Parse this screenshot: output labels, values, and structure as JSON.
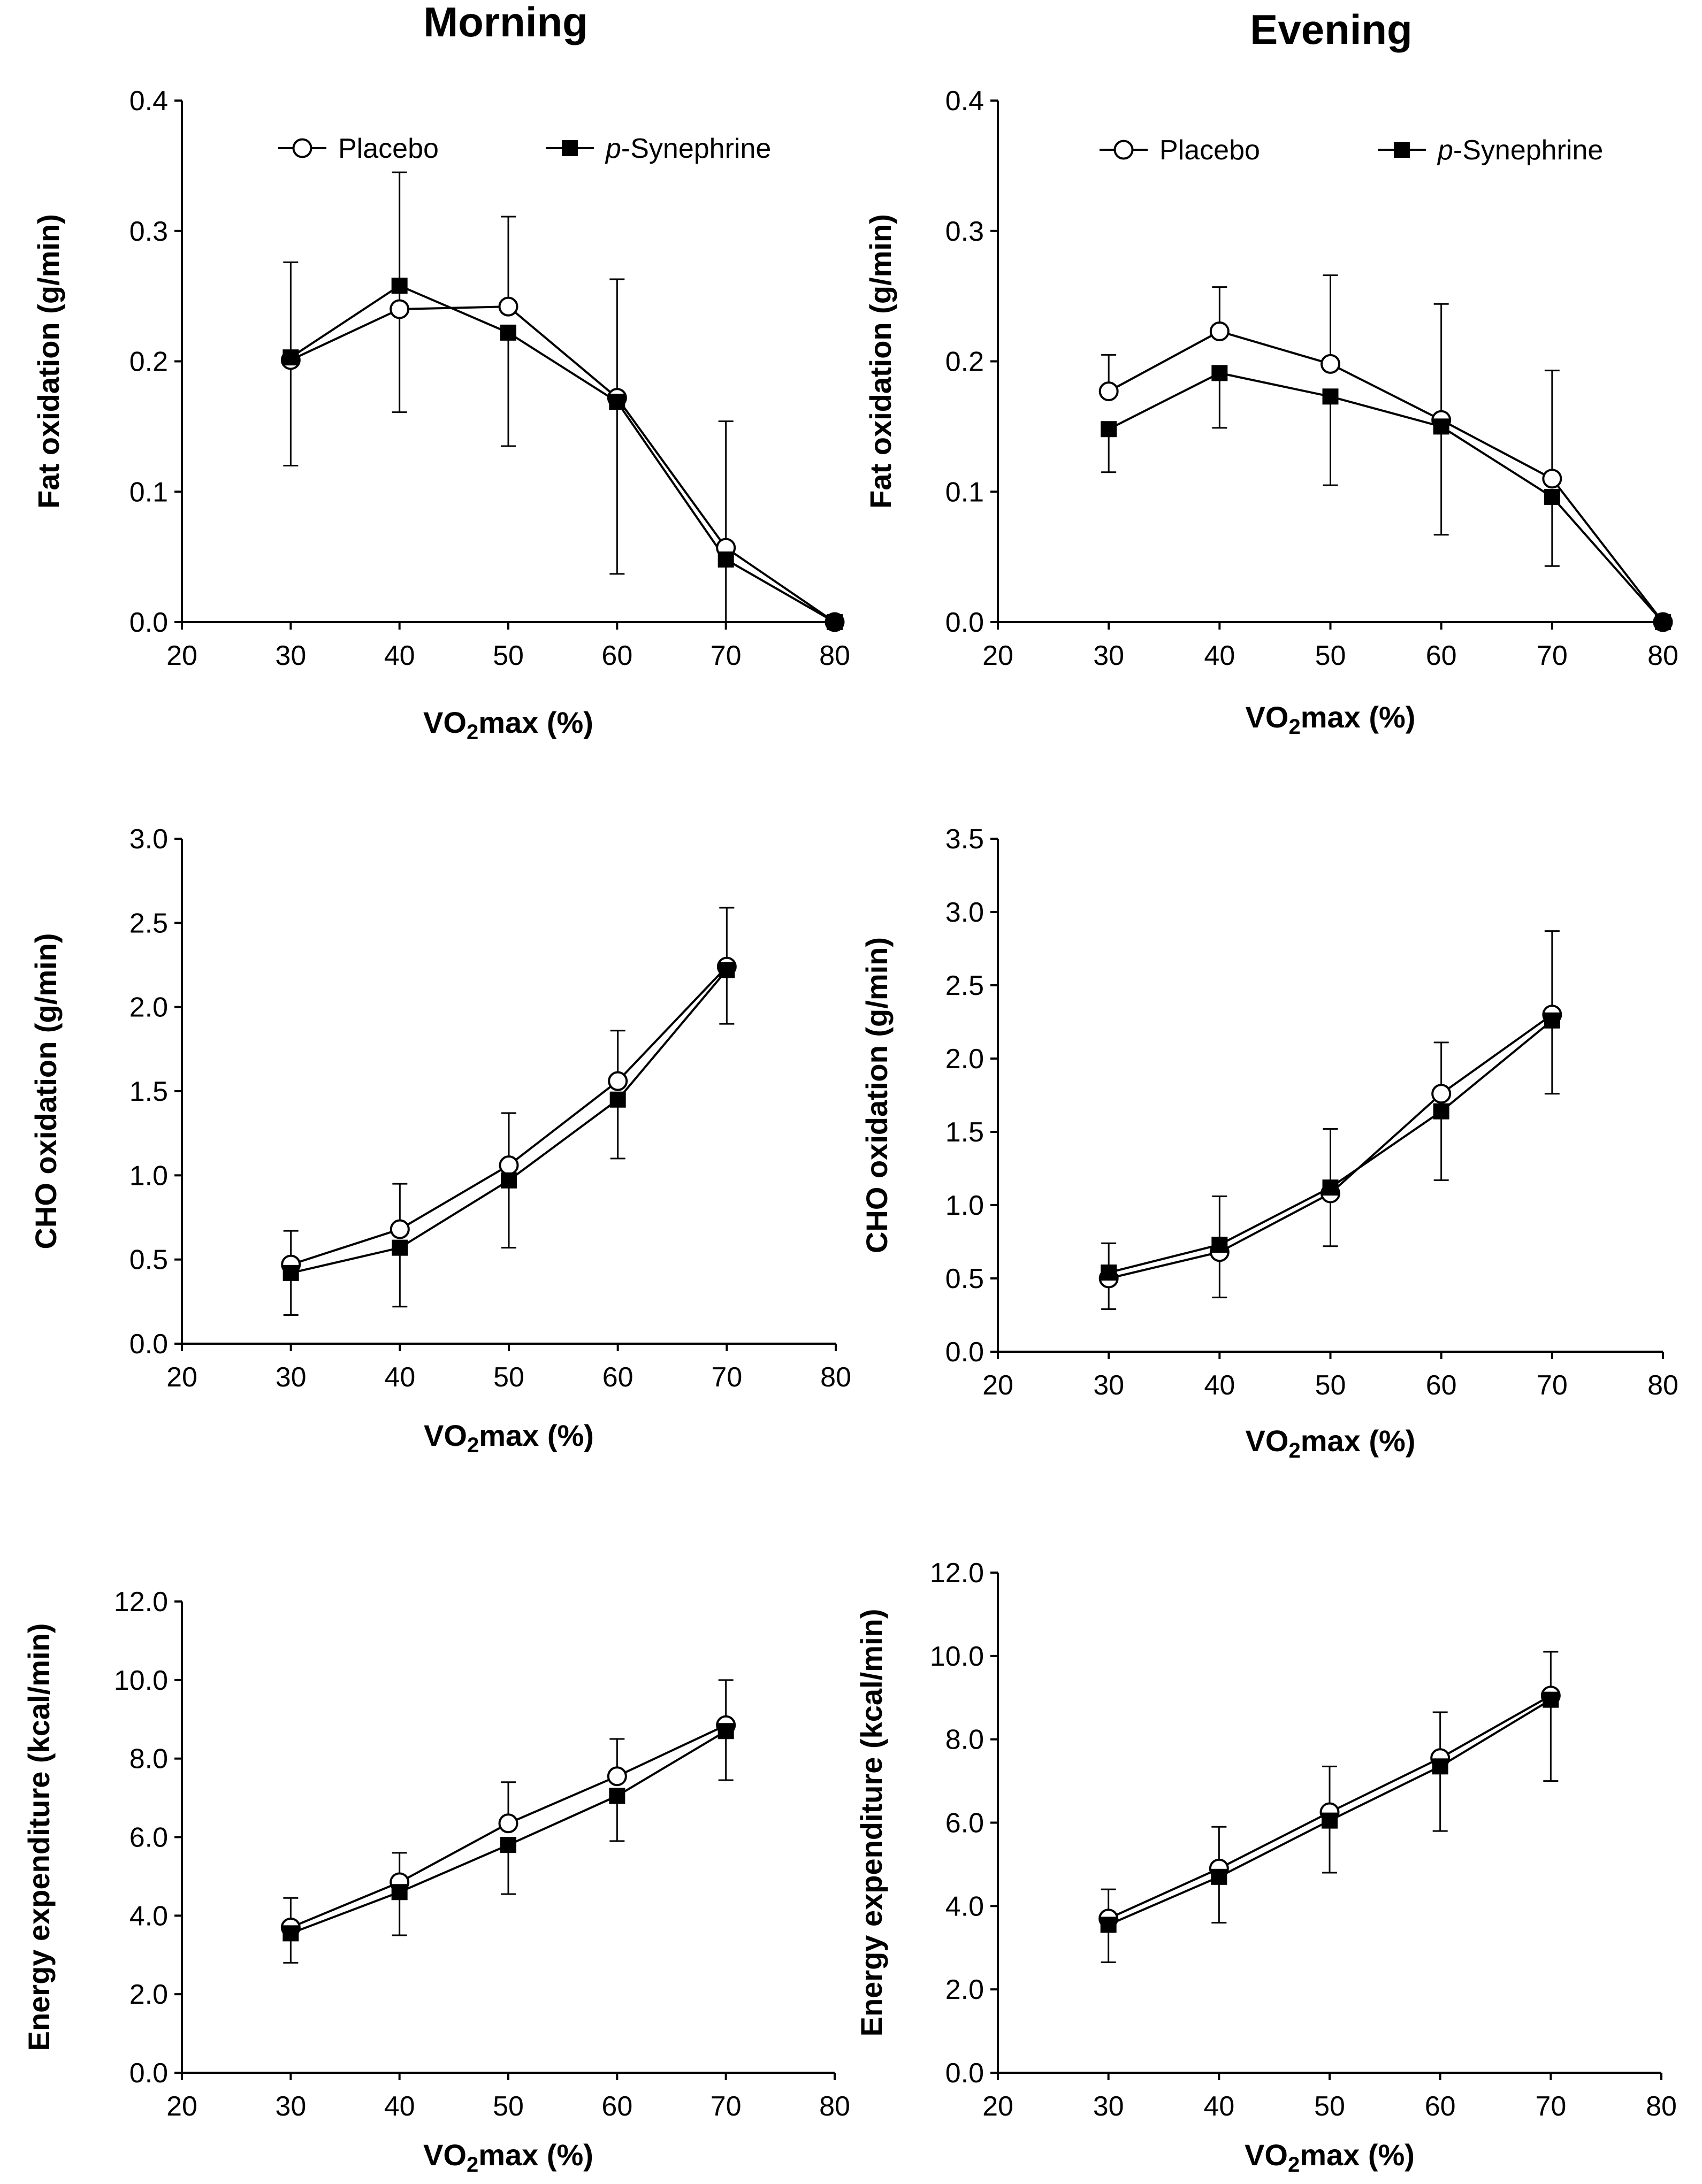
{
  "figure": {
    "column_titles": [
      "Morning",
      "Evening"
    ]
  },
  "chart_data": [
    {
      "type": "line",
      "panel": "Morning fat oxidation",
      "xlabel": "VO",
      "xlabel_sub": "2",
      "xlabel_rest": "max (%)",
      "ylabel": "Fat oxidation (g/min)",
      "xlim": [
        20,
        80
      ],
      "ylim": [
        0,
        0.4
      ],
      "x_ticks": [
        20,
        30,
        40,
        50,
        60,
        70,
        80
      ],
      "y_ticks": [
        "0.0",
        "0.1",
        "0.2",
        "0.3",
        "0.4"
      ],
      "legend": {
        "position": "top",
        "entries": [
          {
            "marker": "open-circle",
            "label": "Placebo"
          },
          {
            "marker": "filled-square",
            "label_italic": "p",
            "label": "-Synephrine"
          }
        ]
      },
      "series": [
        {
          "name": "Placebo",
          "marker": "open-circle",
          "x": [
            30,
            40,
            50,
            60,
            70,
            80
          ],
          "y": [
            0.201,
            0.24,
            0.242,
            0.172,
            0.057,
            0.0
          ],
          "err_up": [
            0.075,
            0,
            0.069,
            0,
            0.097,
            0
          ],
          "err_down": [
            0,
            0,
            0,
            0,
            0,
            0
          ]
        },
        {
          "name": "p-Synephrine",
          "marker": "filled-square",
          "x": [
            30,
            40,
            50,
            60,
            70,
            80
          ],
          "y": [
            0.203,
            0.258,
            0.222,
            0.169,
            0.048,
            0.0
          ],
          "err_up": [
            0,
            0.087,
            0,
            0.094,
            0,
            0
          ],
          "err_down": [
            0.083,
            0.097,
            0.087,
            0.132,
            0.048,
            0
          ]
        }
      ]
    },
    {
      "type": "line",
      "panel": "Evening fat oxidation",
      "xlabel": "VO",
      "xlabel_sub": "2",
      "xlabel_rest": "max (%)",
      "ylabel": "Fat oxidation (g/min)",
      "xlim": [
        20,
        80
      ],
      "ylim": [
        0,
        0.4
      ],
      "x_ticks": [
        20,
        30,
        40,
        50,
        60,
        70,
        80
      ],
      "y_ticks": [
        "0.0",
        "0.1",
        "0.2",
        "0.3",
        "0.4"
      ],
      "legend": {
        "position": "top",
        "entries": [
          {
            "marker": "open-circle",
            "label": "Placebo"
          },
          {
            "marker": "filled-square",
            "label_italic": "p",
            "label": "-Synephrine"
          }
        ]
      },
      "series": [
        {
          "name": "Placebo",
          "marker": "open-circle",
          "x": [
            30,
            40,
            50,
            60,
            70,
            80
          ],
          "y": [
            0.177,
            0.223,
            0.198,
            0.155,
            0.11,
            0.0
          ],
          "err_up": [
            0.028,
            0.034,
            0.068,
            0.089,
            0.083,
            0
          ],
          "err_down": [
            0,
            0,
            0,
            0,
            0,
            0
          ]
        },
        {
          "name": "p-Synephrine",
          "marker": "filled-square",
          "x": [
            30,
            40,
            50,
            60,
            70,
            80
          ],
          "y": [
            0.148,
            0.191,
            0.173,
            0.15,
            0.096,
            0.0
          ],
          "err_up": [
            0,
            0,
            0,
            0,
            0,
            0
          ],
          "err_down": [
            0.033,
            0.042,
            0.068,
            0.083,
            0.053,
            0
          ]
        }
      ]
    },
    {
      "type": "line",
      "panel": "Morning CHO oxidation",
      "xlabel": "VO",
      "xlabel_sub": "2",
      "xlabel_rest": "max (%)",
      "ylabel": "CHO oxidation (g/min)",
      "xlim": [
        20,
        80
      ],
      "ylim": [
        0,
        3.0
      ],
      "x_ticks": [
        20,
        30,
        40,
        50,
        60,
        70,
        80
      ],
      "y_ticks": [
        "0.0",
        "0.5",
        "1.0",
        "1.5",
        "2.0",
        "2.5",
        "3.0"
      ],
      "series": [
        {
          "name": "Placebo",
          "marker": "open-circle",
          "x": [
            30,
            40,
            50,
            60,
            70
          ],
          "y": [
            0.47,
            0.68,
            1.06,
            1.56,
            2.24
          ],
          "err_up": [
            0.2,
            0.27,
            0.31,
            0.3,
            0.35
          ],
          "err_down": [
            0,
            0,
            0,
            0,
            0
          ]
        },
        {
          "name": "p-Synephrine",
          "marker": "filled-square",
          "x": [
            30,
            40,
            50,
            60,
            70
          ],
          "y": [
            0.42,
            0.57,
            0.97,
            1.45,
            2.22
          ],
          "err_up": [
            0,
            0,
            0,
            0,
            0
          ],
          "err_down": [
            0.25,
            0.35,
            0.4,
            0.35,
            0.32
          ]
        }
      ]
    },
    {
      "type": "line",
      "panel": "Evening CHO oxidation",
      "xlabel": "VO",
      "xlabel_sub": "2",
      "xlabel_rest": "max (%)",
      "ylabel": "CHO oxidation (g/min)",
      "xlim": [
        20,
        80
      ],
      "ylim": [
        0,
        3.5
      ],
      "x_ticks": [
        20,
        30,
        40,
        50,
        60,
        70,
        80
      ],
      "y_ticks": [
        "0.0",
        "0.5",
        "1.0",
        "1.5",
        "2.0",
        "2.5",
        "3.0",
        "3.5"
      ],
      "series": [
        {
          "name": "Placebo",
          "marker": "open-circle",
          "x": [
            30,
            40,
            50,
            60,
            70
          ],
          "y": [
            0.5,
            0.68,
            1.08,
            1.76,
            2.3
          ],
          "err_up": [
            0.24,
            0.38,
            0.44,
            0.35,
            0.57
          ],
          "err_down": [
            0,
            0,
            0,
            0,
            0
          ]
        },
        {
          "name": "p-Synephrine",
          "marker": "filled-square",
          "x": [
            30,
            40,
            50,
            60,
            70
          ],
          "y": [
            0.54,
            0.73,
            1.12,
            1.64,
            2.26
          ],
          "err_up": [
            0,
            0,
            0,
            0,
            0
          ],
          "err_down": [
            0.25,
            0.36,
            0.4,
            0.47,
            0.5
          ]
        }
      ]
    },
    {
      "type": "line",
      "panel": "Morning energy expenditure",
      "xlabel": "VO",
      "xlabel_sub": "2",
      "xlabel_rest": "max (%)",
      "ylabel": "Energy expenditure (kcal/min)",
      "xlim": [
        20,
        80
      ],
      "ylim": [
        0,
        12
      ],
      "x_ticks": [
        20,
        30,
        40,
        50,
        60,
        70,
        80
      ],
      "y_ticks": [
        "0.0",
        "2.0",
        "4.0",
        "6.0",
        "8.0",
        "10.0",
        "12.0"
      ],
      "series": [
        {
          "name": "Placebo",
          "marker": "open-circle",
          "x": [
            30,
            40,
            50,
            60,
            70
          ],
          "y": [
            3.7,
            4.85,
            6.35,
            7.55,
            8.85
          ],
          "err_up": [
            0.75,
            0.75,
            1.05,
            0.95,
            1.15
          ],
          "err_down": [
            0,
            0,
            0,
            0,
            0
          ]
        },
        {
          "name": "p-Synephrine",
          "marker": "filled-square",
          "x": [
            30,
            40,
            50,
            60,
            70
          ],
          "y": [
            3.55,
            4.6,
            5.8,
            7.05,
            8.7
          ],
          "err_up": [
            0,
            0,
            0,
            0,
            0
          ],
          "err_down": [
            0.75,
            1.1,
            1.25,
            1.15,
            1.25
          ]
        }
      ]
    },
    {
      "type": "line",
      "panel": "Evening energy expenditure",
      "xlabel": "VO",
      "xlabel_sub": "2",
      "xlabel_rest": "max (%)",
      "ylabel": "Energy expenditure (kcal/min)",
      "xlim": [
        20,
        80
      ],
      "ylim": [
        0,
        12
      ],
      "x_ticks": [
        20,
        30,
        40,
        50,
        60,
        70,
        80
      ],
      "y_ticks": [
        "0.0",
        "2.0",
        "4.0",
        "6.0",
        "8.0",
        "10.0",
        "12.0"
      ],
      "series": [
        {
          "name": "Placebo",
          "marker": "open-circle",
          "x": [
            30,
            40,
            50,
            60,
            70
          ],
          "y": [
            3.7,
            4.9,
            6.25,
            7.55,
            9.05
          ],
          "err_up": [
            0.7,
            1.0,
            1.1,
            1.1,
            1.05
          ],
          "err_down": [
            0,
            0,
            0,
            0,
            0
          ]
        },
        {
          "name": "p-Synephrine",
          "marker": "filled-square",
          "x": [
            30,
            40,
            50,
            60,
            70
          ],
          "y": [
            3.55,
            4.7,
            6.05,
            7.35,
            8.95
          ],
          "err_up": [
            0,
            0,
            0,
            0,
            0
          ],
          "err_down": [
            0.9,
            1.1,
            1.25,
            1.55,
            1.95
          ]
        }
      ]
    }
  ]
}
